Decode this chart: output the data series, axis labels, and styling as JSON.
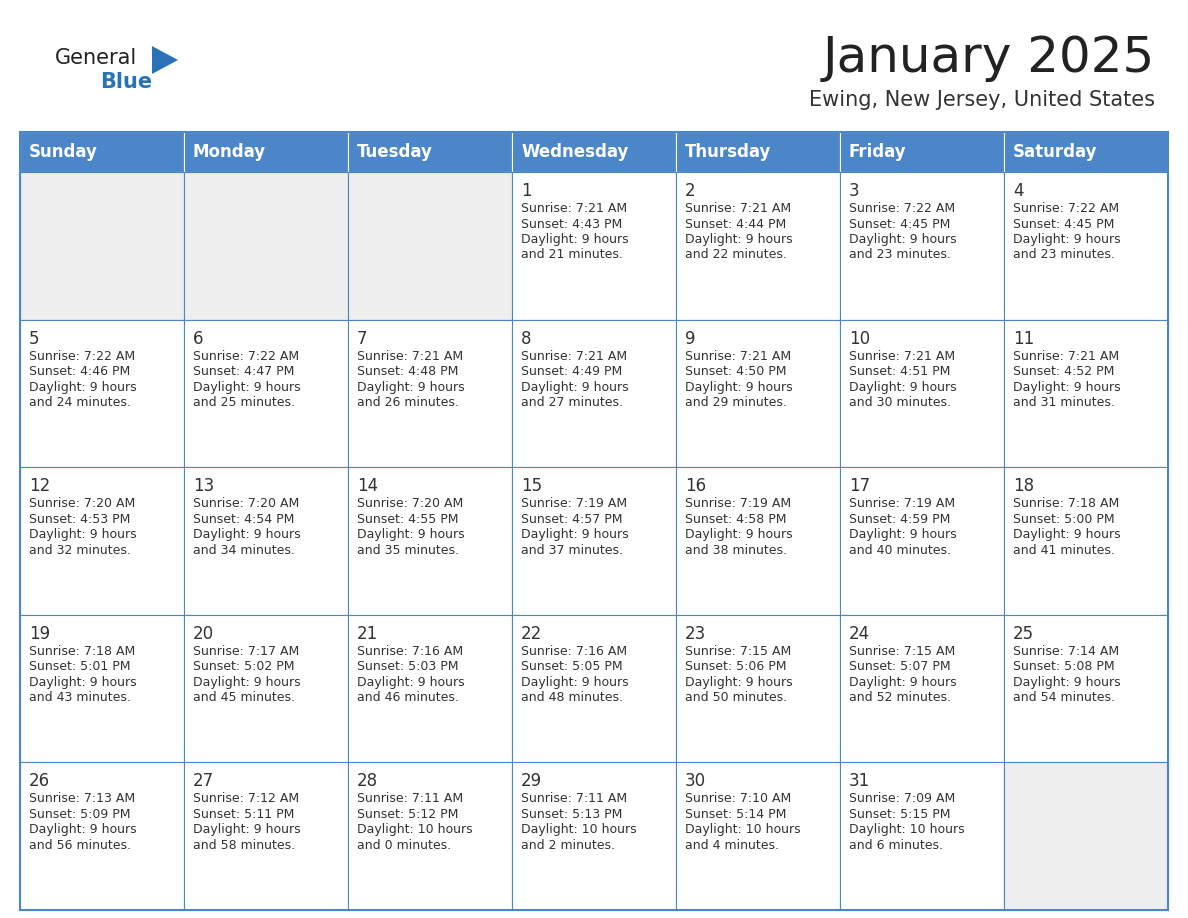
{
  "title": "January 2025",
  "subtitle": "Ewing, New Jersey, United States",
  "days_of_week": [
    "Sunday",
    "Monday",
    "Tuesday",
    "Wednesday",
    "Thursday",
    "Friday",
    "Saturday"
  ],
  "header_bg": "#4a86c8",
  "header_text_color": "#ffffff",
  "cell_bg_light": "#eeeeee",
  "cell_bg_white": "#ffffff",
  "border_color": "#4a86c8",
  "text_color": "#333333",
  "title_color": "#222222",
  "subtitle_color": "#333333",
  "logo_general_color": "#222222",
  "logo_blue_color": "#2a72b8",
  "calendar_data": [
    [
      {
        "day": "",
        "sunrise": "",
        "sunset": "",
        "daylight": ""
      },
      {
        "day": "",
        "sunrise": "",
        "sunset": "",
        "daylight": ""
      },
      {
        "day": "",
        "sunrise": "",
        "sunset": "",
        "daylight": ""
      },
      {
        "day": "1",
        "sunrise": "7:21 AM",
        "sunset": "4:43 PM",
        "daylight": "9 hours\nand 21 minutes."
      },
      {
        "day": "2",
        "sunrise": "7:21 AM",
        "sunset": "4:44 PM",
        "daylight": "9 hours\nand 22 minutes."
      },
      {
        "day": "3",
        "sunrise": "7:22 AM",
        "sunset": "4:45 PM",
        "daylight": "9 hours\nand 23 minutes."
      },
      {
        "day": "4",
        "sunrise": "7:22 AM",
        "sunset": "4:45 PM",
        "daylight": "9 hours\nand 23 minutes."
      }
    ],
    [
      {
        "day": "5",
        "sunrise": "7:22 AM",
        "sunset": "4:46 PM",
        "daylight": "9 hours\nand 24 minutes."
      },
      {
        "day": "6",
        "sunrise": "7:22 AM",
        "sunset": "4:47 PM",
        "daylight": "9 hours\nand 25 minutes."
      },
      {
        "day": "7",
        "sunrise": "7:21 AM",
        "sunset": "4:48 PM",
        "daylight": "9 hours\nand 26 minutes."
      },
      {
        "day": "8",
        "sunrise": "7:21 AM",
        "sunset": "4:49 PM",
        "daylight": "9 hours\nand 27 minutes."
      },
      {
        "day": "9",
        "sunrise": "7:21 AM",
        "sunset": "4:50 PM",
        "daylight": "9 hours\nand 29 minutes."
      },
      {
        "day": "10",
        "sunrise": "7:21 AM",
        "sunset": "4:51 PM",
        "daylight": "9 hours\nand 30 minutes."
      },
      {
        "day": "11",
        "sunrise": "7:21 AM",
        "sunset": "4:52 PM",
        "daylight": "9 hours\nand 31 minutes."
      }
    ],
    [
      {
        "day": "12",
        "sunrise": "7:20 AM",
        "sunset": "4:53 PM",
        "daylight": "9 hours\nand 32 minutes."
      },
      {
        "day": "13",
        "sunrise": "7:20 AM",
        "sunset": "4:54 PM",
        "daylight": "9 hours\nand 34 minutes."
      },
      {
        "day": "14",
        "sunrise": "7:20 AM",
        "sunset": "4:55 PM",
        "daylight": "9 hours\nand 35 minutes."
      },
      {
        "day": "15",
        "sunrise": "7:19 AM",
        "sunset": "4:57 PM",
        "daylight": "9 hours\nand 37 minutes."
      },
      {
        "day": "16",
        "sunrise": "7:19 AM",
        "sunset": "4:58 PM",
        "daylight": "9 hours\nand 38 minutes."
      },
      {
        "day": "17",
        "sunrise": "7:19 AM",
        "sunset": "4:59 PM",
        "daylight": "9 hours\nand 40 minutes."
      },
      {
        "day": "18",
        "sunrise": "7:18 AM",
        "sunset": "5:00 PM",
        "daylight": "9 hours\nand 41 minutes."
      }
    ],
    [
      {
        "day": "19",
        "sunrise": "7:18 AM",
        "sunset": "5:01 PM",
        "daylight": "9 hours\nand 43 minutes."
      },
      {
        "day": "20",
        "sunrise": "7:17 AM",
        "sunset": "5:02 PM",
        "daylight": "9 hours\nand 45 minutes."
      },
      {
        "day": "21",
        "sunrise": "7:16 AM",
        "sunset": "5:03 PM",
        "daylight": "9 hours\nand 46 minutes."
      },
      {
        "day": "22",
        "sunrise": "7:16 AM",
        "sunset": "5:05 PM",
        "daylight": "9 hours\nand 48 minutes."
      },
      {
        "day": "23",
        "sunrise": "7:15 AM",
        "sunset": "5:06 PM",
        "daylight": "9 hours\nand 50 minutes."
      },
      {
        "day": "24",
        "sunrise": "7:15 AM",
        "sunset": "5:07 PM",
        "daylight": "9 hours\nand 52 minutes."
      },
      {
        "day": "25",
        "sunrise": "7:14 AM",
        "sunset": "5:08 PM",
        "daylight": "9 hours\nand 54 minutes."
      }
    ],
    [
      {
        "day": "26",
        "sunrise": "7:13 AM",
        "sunset": "5:09 PM",
        "daylight": "9 hours\nand 56 minutes."
      },
      {
        "day": "27",
        "sunrise": "7:12 AM",
        "sunset": "5:11 PM",
        "daylight": "9 hours\nand 58 minutes."
      },
      {
        "day": "28",
        "sunrise": "7:11 AM",
        "sunset": "5:12 PM",
        "daylight": "10 hours\nand 0 minutes."
      },
      {
        "day": "29",
        "sunrise": "7:11 AM",
        "sunset": "5:13 PM",
        "daylight": "10 hours\nand 2 minutes."
      },
      {
        "day": "30",
        "sunrise": "7:10 AM",
        "sunset": "5:14 PM",
        "daylight": "10 hours\nand 4 minutes."
      },
      {
        "day": "31",
        "sunrise": "7:09 AM",
        "sunset": "5:15 PM",
        "daylight": "10 hours\nand 6 minutes."
      },
      {
        "day": "",
        "sunrise": "",
        "sunset": "",
        "daylight": ""
      }
    ]
  ]
}
